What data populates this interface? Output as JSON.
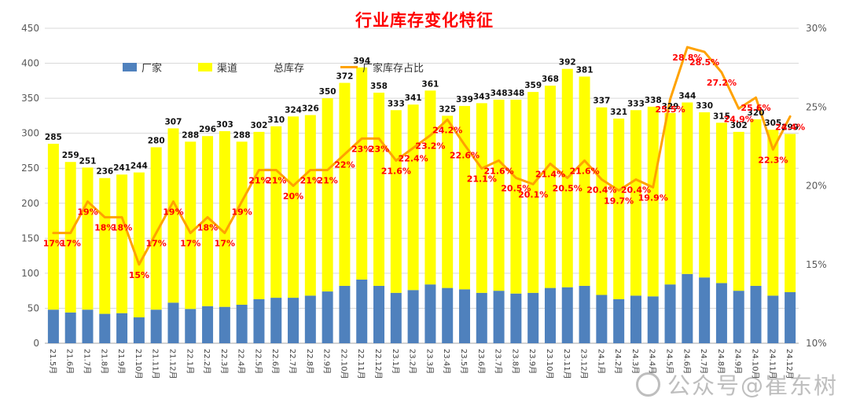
{
  "title": "行业库存变化特征",
  "watermark": {
    "text": "公众号@崔东树"
  },
  "colors": {
    "title": "#FF0000",
    "factory_bar": "#4F81BD",
    "channel_bar": "#FFFF00",
    "ratio_line": "#FFA200",
    "pct_label": "#FF0000",
    "total_label": "#111111",
    "grid": "#D9D9D9",
    "axis_text": "#595959"
  },
  "legend": {
    "items": [
      {
        "label": "厂家",
        "swatch": "square",
        "color": "#4F81BD"
      },
      {
        "label": "渠道",
        "swatch": "square",
        "color": "#FFFF00"
      },
      {
        "label": "总库存",
        "swatch": "none",
        "color": "#111111"
      },
      {
        "label": "厂家库存占比",
        "swatch": "line",
        "color": "#FFA200"
      }
    ]
  },
  "chart_data": {
    "type": "bar",
    "subtype": "stacked-bars-with-line",
    "title": "行业库存变化特征",
    "legend_position": "top-left-inside",
    "grid": true,
    "categories": [
      "21.5月",
      "21.6月",
      "21.7月",
      "21.8月",
      "21.9月",
      "21.10月",
      "21.11月",
      "21.12月",
      "22.1月",
      "22.2月",
      "22.3月",
      "22.4月",
      "22.5月",
      "22.6月",
      "22.7月",
      "22.8月",
      "22.9月",
      "22.10月",
      "22.11月",
      "22.12月",
      "23.1月",
      "23.2月",
      "23.3月",
      "23.4月",
      "23.5月",
      "23.6月",
      "23.7月",
      "23.8月",
      "23.9月",
      "23.10月",
      "23.11月",
      "23.12月",
      "24.1月",
      "24.2月",
      "24.3月",
      "24.4月",
      "24.5月",
      "24.6月",
      "24.7月",
      "24.8月",
      "24.9月",
      "24.10月",
      "24.11月",
      "24.12月"
    ],
    "series": [
      {
        "name": "厂家",
        "type": "bar",
        "stack": "inventory",
        "color": "#4F81BD",
        "values": [
          48,
          44,
          48,
          42,
          43,
          37,
          48,
          58,
          49,
          53,
          52,
          55,
          63,
          65,
          65,
          68,
          74,
          82,
          91,
          82,
          72,
          76,
          84,
          79,
          77,
          72,
          75,
          71,
          72,
          79,
          80,
          82,
          69,
          63,
          68,
          67,
          84,
          99,
          94,
          86,
          75,
          82,
          68,
          73
        ]
      },
      {
        "name": "渠道",
        "type": "bar",
        "stack": "inventory",
        "color": "#FFFF00",
        "values": [
          237,
          215,
          203,
          194,
          198,
          207,
          232,
          249,
          239,
          243,
          251,
          233,
          239,
          245,
          259,
          258,
          276,
          290,
          303,
          276,
          261,
          265,
          277,
          246,
          262,
          271,
          273,
          277,
          287,
          289,
          312,
          299,
          268,
          258,
          265,
          271,
          245,
          245,
          236,
          229,
          227,
          238,
          237,
          226
        ]
      },
      {
        "name": "总库存",
        "type": "total-labels",
        "values": [
          285,
          259,
          251,
          236,
          241,
          244,
          280,
          307,
          288,
          296,
          303,
          288,
          302,
          310,
          324,
          326,
          350,
          372,
          394,
          358,
          333,
          341,
          361,
          325,
          339,
          343,
          348,
          348,
          359,
          368,
          392,
          381,
          337,
          321,
          333,
          338,
          329,
          344,
          330,
          315,
          302,
          320,
          305,
          299
        ]
      },
      {
        "name": "厂家库存占比",
        "type": "line",
        "axis": "right",
        "color": "#FFA200",
        "values": [
          17,
          17,
          19,
          18,
          18,
          15,
          17,
          19,
          17,
          18,
          17,
          19,
          21,
          21,
          20,
          21,
          21,
          22,
          23,
          23,
          21.6,
          22.4,
          23.2,
          24.2,
          22.6,
          21.1,
          21.6,
          20.5,
          20.1,
          21.4,
          20.5,
          21.6,
          20.4,
          19.7,
          20.4,
          19.9,
          25.5,
          28.8,
          28.5,
          27.2,
          24.9,
          25.6,
          22.3,
          24.4
        ],
        "labels": [
          "17%",
          "17%",
          "19%",
          "18%",
          "18%",
          "15%",
          "17%",
          "19%",
          "17%",
          "18%",
          "17%",
          "19%",
          "21%",
          "21%",
          "20%",
          "21%",
          "21%",
          "22%",
          "23%",
          "23%",
          "21.6%",
          "22.4%",
          "23.2%",
          "24.2%",
          "22.6%",
          "21.1%",
          "21.6%",
          "20.5%",
          "20.1%",
          "21.4%",
          "20.5%",
          "21.6%",
          "20.4%",
          "19.7%",
          "20.4%",
          "19.9%",
          "25.5%",
          "28.8%",
          "28.5%",
          "27.2%",
          "24.9%",
          "25.6%",
          "22.3%",
          "24.4%"
        ]
      }
    ],
    "left_axis": {
      "min": 0,
      "max": 450,
      "step": 50,
      "ticks": [
        "0",
        "50",
        "100",
        "150",
        "200",
        "250",
        "300",
        "350",
        "400",
        "450"
      ]
    },
    "right_axis": {
      "min": 10,
      "max": 30,
      "step": 5,
      "ticks": [
        "10%",
        "15%",
        "20%",
        "25%",
        "30%"
      ]
    }
  }
}
